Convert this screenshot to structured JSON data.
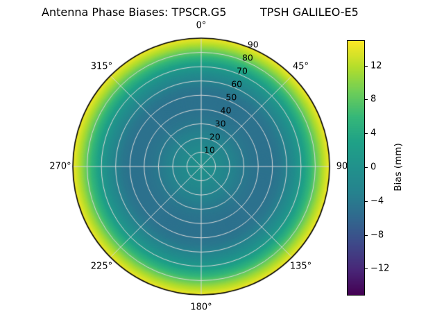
{
  "title": {
    "left": "Antenna Phase Biases: TPSCR.G5",
    "right": "TPSH GALILEO-E5"
  },
  "chart_data": {
    "type": "heatmap",
    "projection": "polar",
    "theta_direction": "clockwise-from-north",
    "r_max": 90,
    "rlabel_angle_deg": 22.5,
    "theta_ticks": [
      {
        "deg": 0,
        "label": "0°"
      },
      {
        "deg": 45,
        "label": "45°"
      },
      {
        "deg": 90,
        "label": "90"
      },
      {
        "deg": 135,
        "label": "135°"
      },
      {
        "deg": 180,
        "label": "180°"
      },
      {
        "deg": 225,
        "label": "225°"
      },
      {
        "deg": 270,
        "label": "270°"
      },
      {
        "deg": 315,
        "label": "315°"
      }
    ],
    "r_ticks": [
      {
        "r": 10,
        "label": "10"
      },
      {
        "r": 20,
        "label": "20"
      },
      {
        "r": 30,
        "label": "30"
      },
      {
        "r": 40,
        "label": "40"
      },
      {
        "r": 50,
        "label": "50"
      },
      {
        "r": 60,
        "label": "60"
      },
      {
        "r": 70,
        "label": "70"
      },
      {
        "r": 80,
        "label": "80"
      },
      {
        "r": 90,
        "label": "90"
      }
    ],
    "radial_profile": {
      "zenith_deg": [
        0,
        5,
        10,
        15,
        20,
        25,
        30,
        35,
        40,
        45,
        50,
        55,
        60,
        65,
        70,
        75,
        80,
        85,
        90
      ],
      "bias_mm": [
        0,
        -0.5,
        -1,
        -1.8,
        -2.5,
        -3.3,
        -4,
        -4.5,
        -4.8,
        -4.9,
        -4.8,
        -4.2,
        -3,
        -1,
        1.5,
        4.5,
        8,
        11.5,
        14.5
      ]
    },
    "vmin": -15,
    "vmax": 15,
    "colormap": {
      "name": "viridis",
      "stops": [
        [
          0.0,
          "#440154"
        ],
        [
          0.1,
          "#482878"
        ],
        [
          0.2,
          "#3e4989"
        ],
        [
          0.3,
          "#31688e"
        ],
        [
          0.4,
          "#26828e"
        ],
        [
          0.5,
          "#21918c"
        ],
        [
          0.6,
          "#1fa187"
        ],
        [
          0.7,
          "#35b779"
        ],
        [
          0.8,
          "#6ece58"
        ],
        [
          0.9,
          "#b5de2b"
        ],
        [
          1.0,
          "#fde725"
        ]
      ]
    },
    "grid": {
      "color": "#d9d9d9",
      "ring_step": 10,
      "spoke_step_deg": 45,
      "outline_color": "#000000"
    },
    "colorbar": {
      "label": "Bias (mm)",
      "ticks": [
        {
          "value": 12,
          "label": "12"
        },
        {
          "value": 8,
          "label": "8"
        },
        {
          "value": 4,
          "label": "4"
        },
        {
          "value": 0,
          "label": "0"
        },
        {
          "value": -4,
          "label": "−4"
        },
        {
          "value": -8,
          "label": "−8"
        },
        {
          "value": -12,
          "label": "−12"
        }
      ]
    }
  }
}
